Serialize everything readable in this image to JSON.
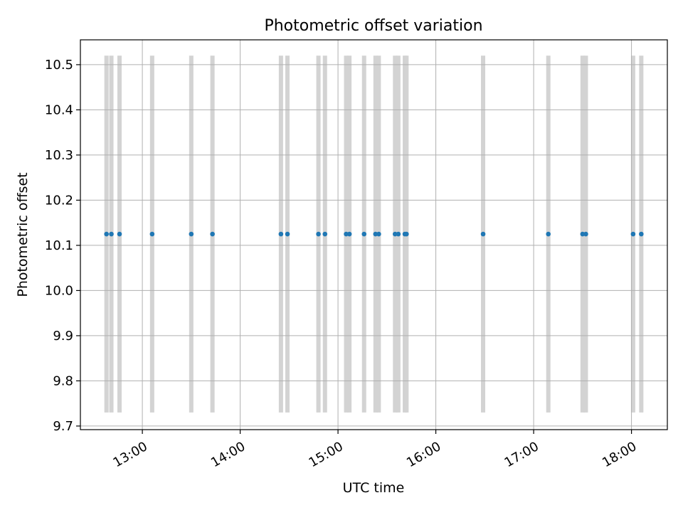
{
  "chart_data": {
    "type": "scatter",
    "title": "Photometric offset variation",
    "xlabel": "UTC time",
    "ylabel": "Photometric offset",
    "xlim": [
      "12:22",
      "18:22"
    ],
    "ylim": [
      9.692,
      10.555
    ],
    "xticks": [
      {
        "t": "13:00",
        "label": "13:00"
      },
      {
        "t": "14:00",
        "label": "14:00"
      },
      {
        "t": "15:00",
        "label": "15:00"
      },
      {
        "t": "16:00",
        "label": "16:00"
      },
      {
        "t": "17:00",
        "label": "17:00"
      },
      {
        "t": "18:00",
        "label": "18:00"
      }
    ],
    "yticks": [
      {
        "v": 9.7,
        "label": "9.7"
      },
      {
        "v": 9.8,
        "label": "9.8"
      },
      {
        "v": 9.9,
        "label": "9.9"
      },
      {
        "v": 10.0,
        "label": "10.0"
      },
      {
        "v": 10.1,
        "label": "10.1"
      },
      {
        "v": 10.2,
        "label": "10.2"
      },
      {
        "v": 10.3,
        "label": "10.3"
      },
      {
        "v": 10.4,
        "label": "10.4"
      },
      {
        "v": 10.5,
        "label": "10.5"
      }
    ],
    "grid": true,
    "bands": {
      "y_min": 9.73,
      "y_max": 10.52,
      "color": "#d3d3d3"
    },
    "point_color": "#1f77b4",
    "points": [
      {
        "t": "12:38",
        "y": 10.125
      },
      {
        "t": "12:41",
        "y": 10.125
      },
      {
        "t": "12:46",
        "y": 10.125
      },
      {
        "t": "13:06",
        "y": 10.125
      },
      {
        "t": "13:30",
        "y": 10.125
      },
      {
        "t": "13:43",
        "y": 10.125
      },
      {
        "t": "14:25",
        "y": 10.125
      },
      {
        "t": "14:29",
        "y": 10.125
      },
      {
        "t": "14:48",
        "y": 10.125
      },
      {
        "t": "14:52",
        "y": 10.125
      },
      {
        "t": "15:05",
        "y": 10.125
      },
      {
        "t": "15:07",
        "y": 10.125
      },
      {
        "t": "15:16",
        "y": 10.125
      },
      {
        "t": "15:23",
        "y": 10.125
      },
      {
        "t": "15:25",
        "y": 10.125
      },
      {
        "t": "15:35",
        "y": 10.125
      },
      {
        "t": "15:37",
        "y": 10.125
      },
      {
        "t": "15:41",
        "y": 10.125
      },
      {
        "t": "15:42",
        "y": 10.125
      },
      {
        "t": "16:29",
        "y": 10.125
      },
      {
        "t": "17:09",
        "y": 10.125
      },
      {
        "t": "17:30",
        "y": 10.125
      },
      {
        "t": "17:32",
        "y": 10.125
      },
      {
        "t": "18:01",
        "y": 10.125
      },
      {
        "t": "18:06",
        "y": 10.125
      }
    ]
  }
}
